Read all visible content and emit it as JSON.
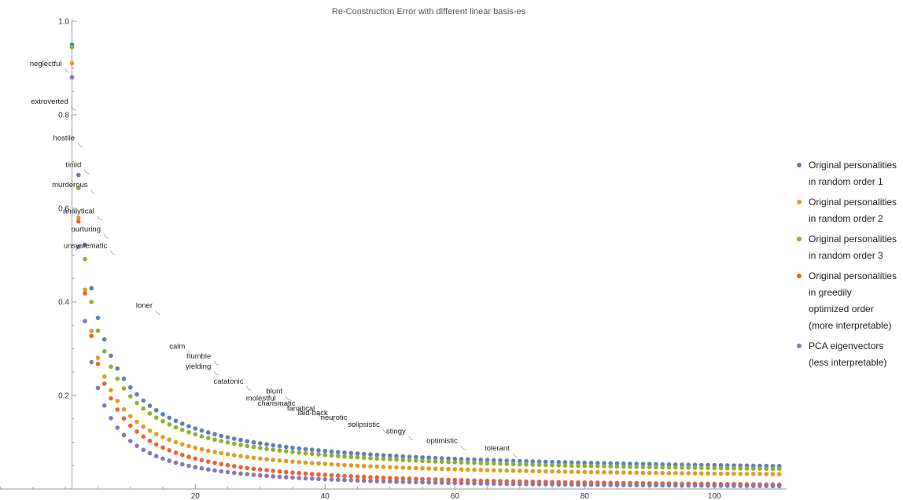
{
  "chart_data": {
    "type": "scatter",
    "title": "Re-Construction Error with different linear basis-es",
    "xlabel": "",
    "ylabel": "",
    "xlim": [
      1,
      110
    ],
    "ylim": [
      0.02,
      1.0
    ],
    "x_ticks": [
      20,
      40,
      60,
      80,
      100
    ],
    "y_ticks": [
      0.2,
      0.4,
      0.6,
      0.8,
      1.0
    ],
    "x_tick_labels": [
      "20",
      "40",
      "60",
      "80",
      "100"
    ],
    "y_tick_labels": [
      "0.2",
      "0.4",
      "0.6",
      "0.8",
      "1.0"
    ],
    "grid": false,
    "legend_position": "right",
    "series": [
      {
        "name": "Original personalities in random order 1",
        "legend_lines": [
          "Original personalities",
          "in random order 1"
        ],
        "color": "#5E81B5",
        "model": {
          "a": 0.92,
          "b": 2.3,
          "p": 1.0,
          "c": 0.03
        }
      },
      {
        "name": "Original personalities in random order 2",
        "legend_lines": [
          "Original personalities",
          "in random order 2"
        ],
        "color": "#E19C24",
        "model": {
          "a": 0.89,
          "b": 1.8,
          "p": 1.05,
          "c": 0.02
        }
      },
      {
        "name": "Original personalities in random order 3",
        "legend_lines": [
          "Original personalities",
          "in random order 3"
        ],
        "color": "#8FB032",
        "model": {
          "a": 0.92,
          "b": 2.0,
          "p": 0.98,
          "c": 0.025
        }
      },
      {
        "name": "Original personalities in greedily optimized order (more interpretable)",
        "legend_lines": [
          "Original personalities",
          "in greedily",
          "optimized order",
          "(more interpretable)"
        ],
        "color": "#EB6235",
        "model": {
          "a": 0.88,
          "b": 2.2,
          "p": 1.15,
          "c": 0.0
        }
      },
      {
        "name": "PCA eigenvectors (less interpretable)",
        "legend_lines": [
          "PCA eigenvectors",
          "(less interpretable)"
        ],
        "color": "#8778B3",
        "model": {
          "a": 0.88,
          "b": 1.8,
          "p": 1.2,
          "c": 0.0
        }
      }
    ],
    "n_points": 110,
    "annotations": [
      {
        "text": "neglectful",
        "x": 1,
        "y": 0.889
      },
      {
        "text": "extroverted",
        "x": 2,
        "y": 0.808
      },
      {
        "text": "hostile",
        "x": 3,
        "y": 0.73
      },
      {
        "text": "timid",
        "x": 4,
        "y": 0.673
      },
      {
        "text": "murderous",
        "x": 5,
        "y": 0.63
      },
      {
        "text": "analytical",
        "x": 6,
        "y": 0.574
      },
      {
        "text": "nurturing",
        "x": 7,
        "y": 0.535
      },
      {
        "text": "unsystematic",
        "x": 8,
        "y": 0.5
      },
      {
        "text": "loner",
        "x": 15,
        "y": 0.372
      },
      {
        "text": "calm",
        "x": 20,
        "y": 0.285
      },
      {
        "text": "humble",
        "x": 24,
        "y": 0.264
      },
      {
        "text": "yielding",
        "x": 24,
        "y": 0.242
      },
      {
        "text": "catatonic",
        "x": 29,
        "y": 0.21
      },
      {
        "text": "blunt",
        "x": 35,
        "y": 0.189
      },
      {
        "text": "molestful",
        "x": 34,
        "y": 0.174
      },
      {
        "text": "charismatic",
        "x": 37,
        "y": 0.163
      },
      {
        "text": "fanatical",
        "x": 40,
        "y": 0.152
      },
      {
        "text": "laid-back",
        "x": 42,
        "y": 0.143
      },
      {
        "text": "neurotic",
        "x": 45,
        "y": 0.133
      },
      {
        "text": "solipsistic",
        "x": 50,
        "y": 0.118
      },
      {
        "text": "stingy",
        "x": 54,
        "y": 0.103
      },
      {
        "text": "optimistic",
        "x": 62,
        "y": 0.083
      },
      {
        "text": "tolerant",
        "x": 70,
        "y": 0.067
      }
    ]
  }
}
